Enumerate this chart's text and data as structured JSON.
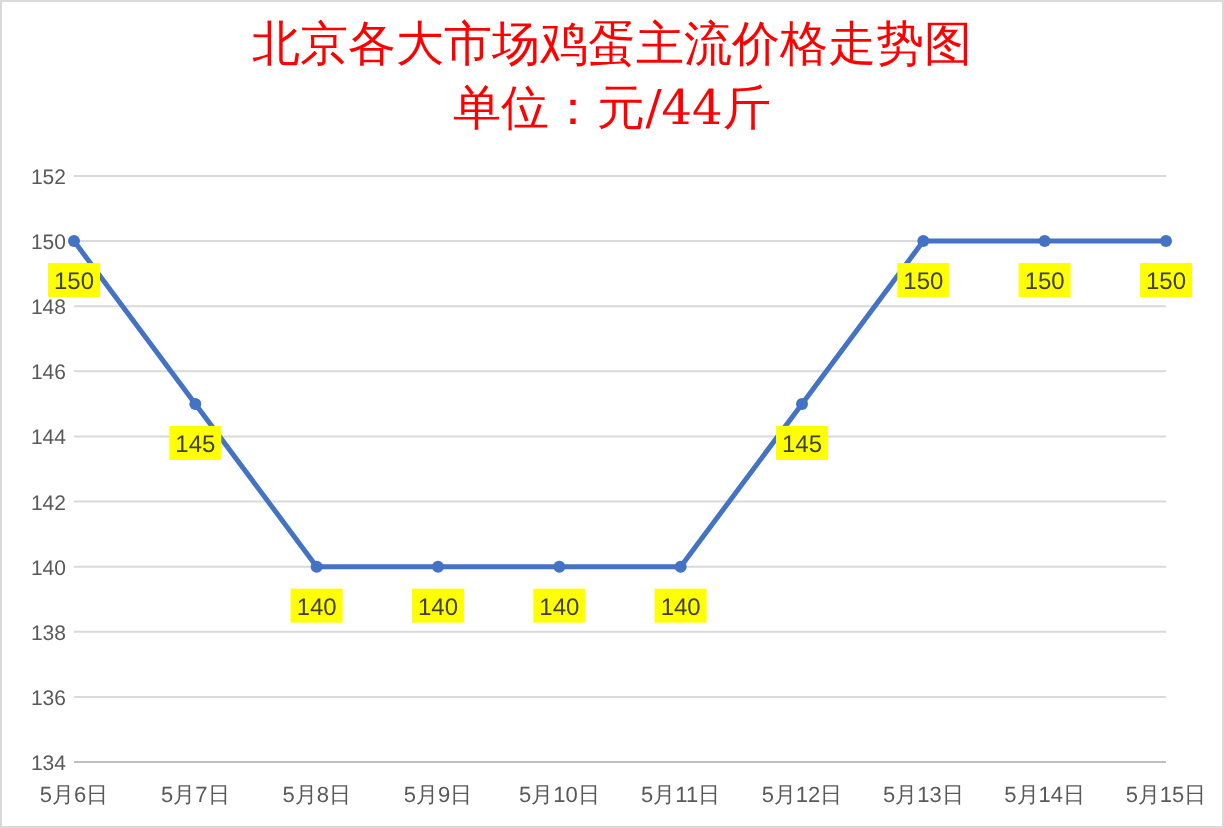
{
  "chart_data": {
    "type": "line",
    "title": "北京各大市场鸡蛋主流价格走势图",
    "subtitle": "单位：元/44斤",
    "categories": [
      "5月6日",
      "5月7日",
      "5月8日",
      "5月9日",
      "5月10日",
      "5月11日",
      "5月12日",
      "5月13日",
      "5月14日",
      "5月15日"
    ],
    "series": [
      {
        "color": "#4472c4",
        "values": [
          150,
          145,
          140,
          140,
          140,
          140,
          145,
          150,
          150,
          150
        ]
      }
    ],
    "ylim": [
      134,
      152
    ],
    "yticks": [
      134,
      136,
      138,
      140,
      142,
      144,
      146,
      148,
      150,
      152
    ],
    "grid": "y",
    "marker": "circle",
    "line_style": "solid",
    "data_labels": true
  }
}
